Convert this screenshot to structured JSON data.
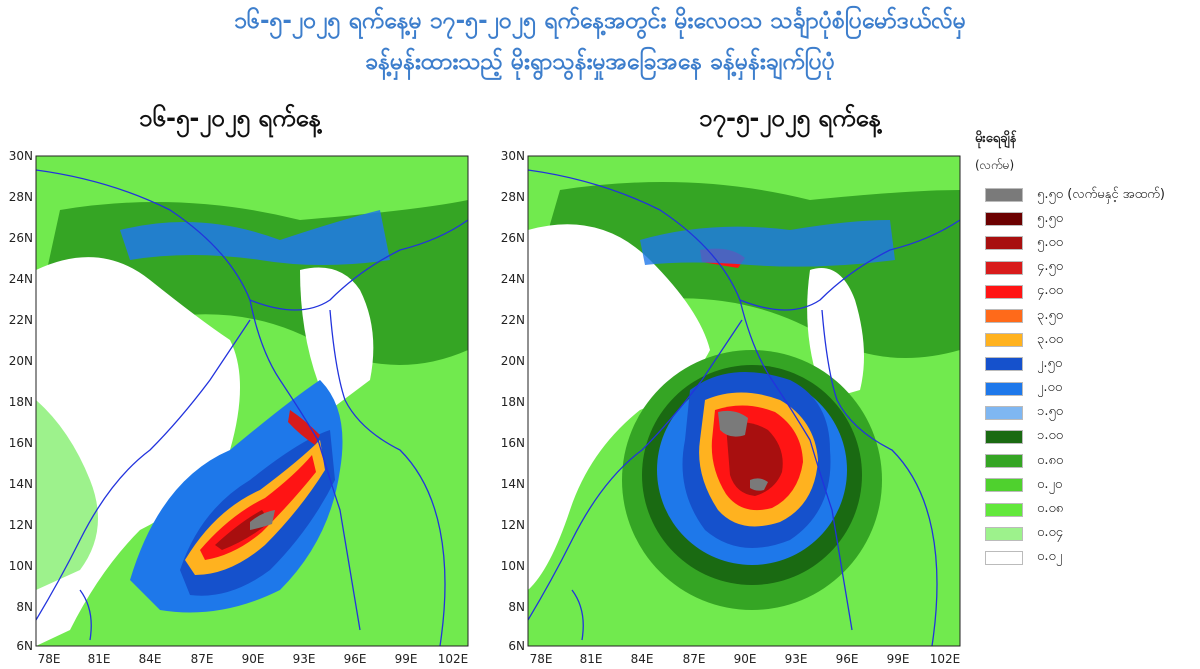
{
  "header": {
    "line1": "၁၆-၅-၂၀၂၅ ရက်နေ့မှ ၁၇-၅-၂၀၂၅ ရက်နေ့အတွင်း မိုးလေဝသ သင်္ချာပုံစံပြမော်ဒယ်လ်မှ",
    "line2": "ခန့်မှန်းထားသည့် မိုးရွာသွန်းမှုအခြေအနေ ခန့်မှန်းချက်ပြပုံ"
  },
  "maps": [
    {
      "title": "၁၆-၅-၂၀၂၅ ရက်နေ့"
    },
    {
      "title": "၁၇-၅-၂၀၂၅ ရက်နေ့"
    }
  ],
  "axes": {
    "lat_labels": [
      "30N",
      "28N",
      "26N",
      "24N",
      "22N",
      "20N",
      "18N",
      "16N",
      "14N",
      "12N",
      "10N",
      "8N",
      "6N"
    ],
    "lon_labels": [
      "78E",
      "81E",
      "84E",
      "87E",
      "90E",
      "93E",
      "96E",
      "99E",
      "102E"
    ]
  },
  "legend": {
    "heading": "မိုးရေချိန်",
    "unit": "(လက်မ)",
    "items": [
      {
        "label": "၅.၅၀ (လက်မနှင့် အထက်)",
        "color": "#7a7a7a"
      },
      {
        "label": "၅.၅၀",
        "color": "#6b0000"
      },
      {
        "label": "၅.၀၀",
        "color": "#a80f0f"
      },
      {
        "label": "၄.၅၀",
        "color": "#d81b1b"
      },
      {
        "label": "၄.၀၀",
        "color": "#ff1414"
      },
      {
        "label": "၃.၅၀",
        "color": "#ff6a1a"
      },
      {
        "label": "၃.၀၀",
        "color": "#ffb21f"
      },
      {
        "label": "၂.၅၀",
        "color": "#1551cc"
      },
      {
        "label": "၂.၀၀",
        "color": "#1e78ea"
      },
      {
        "label": "၁.၅၀",
        "color": "#7fb7f2"
      },
      {
        "label": "၁.၀၀",
        "color": "#1a6a12"
      },
      {
        "label": "၀.၈၀",
        "color": "#35a524"
      },
      {
        "label": "၀.၂၀",
        "color": "#4fd12e"
      },
      {
        "label": "၀.၀၈",
        "color": "#62e83b"
      },
      {
        "label": "၀.၀၄",
        "color": "#9df28c"
      },
      {
        "label": "၀.၀၂",
        "color": "#ffffff"
      }
    ]
  }
}
